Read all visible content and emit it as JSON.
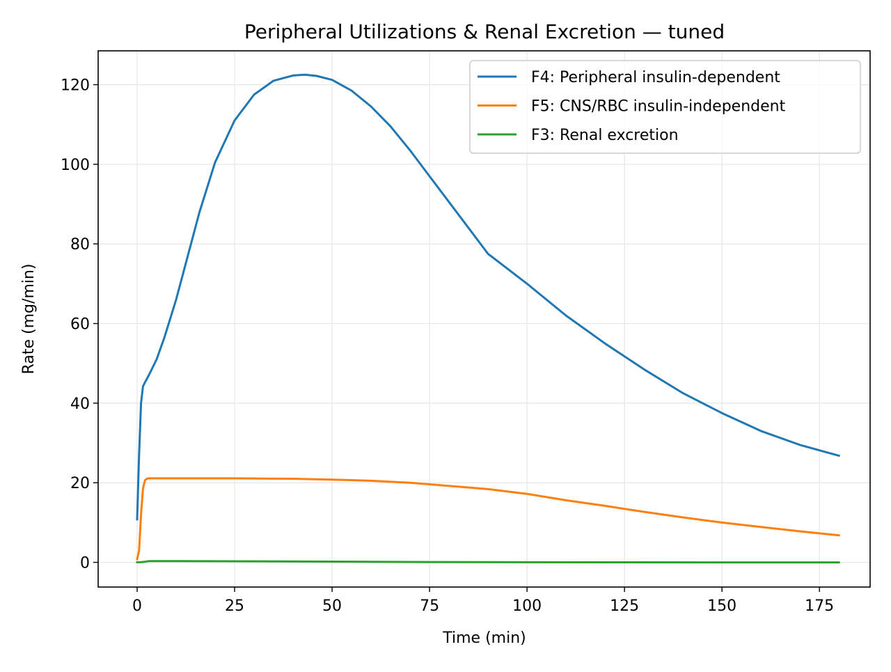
{
  "chart_data": {
    "type": "line",
    "title": "Peripheral Utilizations & Renal Excretion — tuned",
    "xlabel": "Time (min)",
    "ylabel": "Rate (mg/min)",
    "xlim": [
      -10,
      188
    ],
    "ylim": [
      -6.2,
      128.5
    ],
    "xticks": [
      0,
      25,
      50,
      75,
      100,
      125,
      150,
      175
    ],
    "yticks": [
      0,
      20,
      40,
      60,
      80,
      100,
      120
    ],
    "grid": true,
    "legend_position": "top-right",
    "series": [
      {
        "name": "F4: Peripheral insulin-dependent",
        "color": "#1f77b4",
        "x": [
          0,
          0.5,
          1,
          1.5,
          2,
          3,
          4,
          5,
          7,
          10,
          13,
          16,
          20,
          25,
          30,
          35,
          40,
          43,
          46,
          50,
          55,
          60,
          65,
          70,
          75,
          80,
          90,
          100,
          110,
          120,
          130,
          140,
          150,
          160,
          170,
          180
        ],
        "y": [
          10.8,
          27,
          40,
          44.2,
          45.2,
          47,
          49,
          51,
          56.5,
          66,
          77,
          88,
          100.5,
          111,
          117.5,
          121,
          122.3,
          122.5,
          122.2,
          121.2,
          118.5,
          114.5,
          109.5,
          103.5,
          97,
          90.5,
          77.5,
          70,
          62,
          55,
          48.5,
          42.5,
          37.5,
          33,
          29.5,
          26.8
        ]
      },
      {
        "name": "F5: CNS/RBC insulin-independent",
        "color": "#ff7f0e",
        "x": [
          0,
          0.5,
          1,
          1.5,
          2,
          2.5,
          3,
          10,
          25,
          40,
          50,
          60,
          70,
          80,
          90,
          100,
          110,
          120,
          130,
          140,
          150,
          160,
          170,
          180
        ],
        "y": [
          0.8,
          3,
          12,
          18.5,
          20.6,
          21,
          21.1,
          21.1,
          21.1,
          21,
          20.8,
          20.5,
          20,
          19.2,
          18.4,
          17.2,
          15.6,
          14.2,
          12.7,
          11.3,
          10,
          8.9,
          7.8,
          6.8
        ]
      },
      {
        "name": "F3: Renal excretion",
        "color": "#2ca02c",
        "x": [
          0,
          1,
          2,
          3,
          10,
          25,
          50,
          75,
          100,
          125,
          150,
          180
        ],
        "y": [
          0.02,
          0.05,
          0.15,
          0.3,
          0.3,
          0.27,
          0.18,
          0.08,
          0.03,
          0.01,
          0,
          0
        ]
      }
    ]
  }
}
